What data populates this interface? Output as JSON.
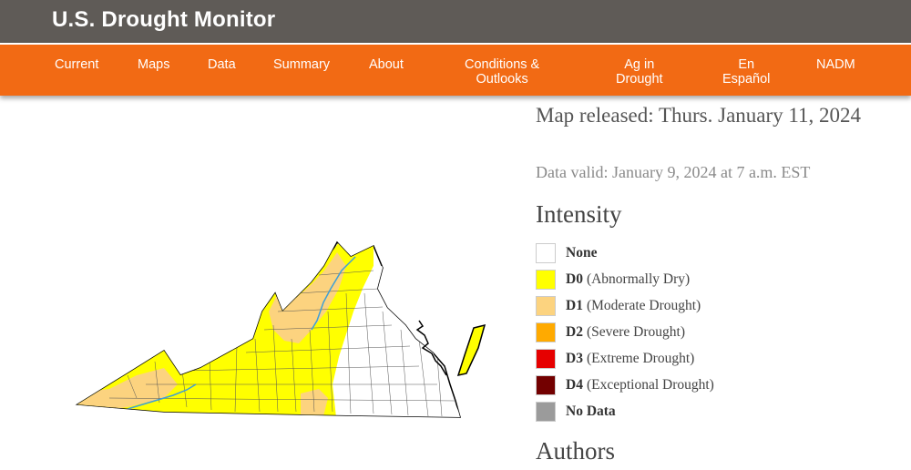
{
  "header": {
    "title": "U.S. Drought Monitor"
  },
  "nav": {
    "items": [
      {
        "label": "Current"
      },
      {
        "label": "Maps"
      },
      {
        "label": "Data"
      },
      {
        "label": "Summary"
      },
      {
        "label": "About"
      },
      {
        "label_line1": "Conditions &",
        "label_line2": "Outlooks"
      },
      {
        "label_line1": "Ag in",
        "label_line2": "Drought"
      },
      {
        "label_line1": "En",
        "label_line2": "Español"
      },
      {
        "label": "NADM"
      }
    ]
  },
  "map": {
    "region": "Virginia",
    "colors": {
      "none": "#ffffff",
      "d0": "#ffff00",
      "d1": "#fcd37f",
      "border": "#000000",
      "river": "#3f9fd6"
    }
  },
  "info": {
    "released": "Map released: Thurs. January 11, 2024",
    "valid": "Data valid: January 9, 2024 at 7 a.m. EST"
  },
  "legend": {
    "heading": "Intensity",
    "items": [
      {
        "code": "None",
        "desc": "",
        "color": "#ffffff"
      },
      {
        "code": "D0",
        "desc": "(Abnormally Dry)",
        "color": "#ffff00"
      },
      {
        "code": "D1",
        "desc": "(Moderate Drought)",
        "color": "#fcd37f"
      },
      {
        "code": "D2",
        "desc": "(Severe Drought)",
        "color": "#ffaa00"
      },
      {
        "code": "D3",
        "desc": "(Extreme Drought)",
        "color": "#e60000"
      },
      {
        "code": "D4",
        "desc": "(Exceptional Drought)",
        "color": "#730000"
      },
      {
        "code": "No Data",
        "desc": "",
        "color": "#9b9b9b"
      }
    ]
  },
  "authors": {
    "heading": "Authors"
  }
}
